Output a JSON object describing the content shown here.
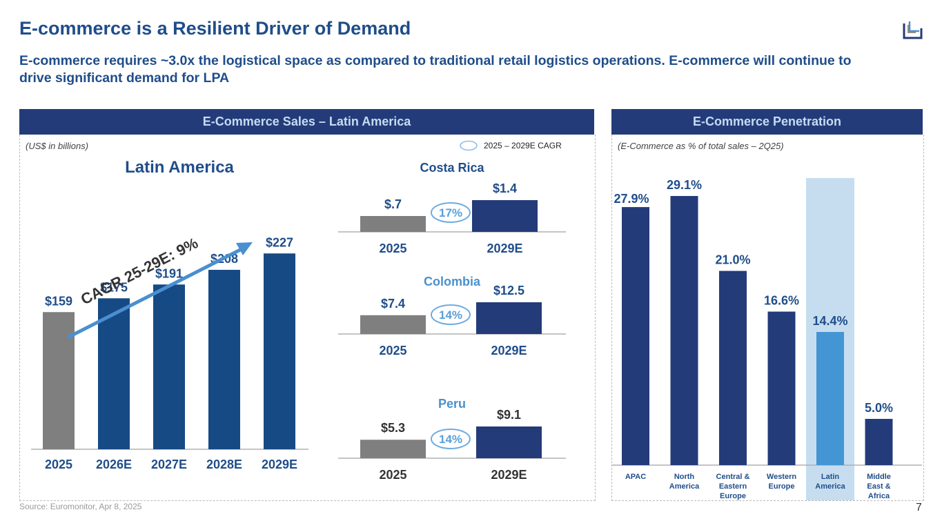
{
  "page": {
    "title": "E-commerce is a Resilient Driver of Demand",
    "subtitle": "E-commerce requires ~3.0x the logistical space as compared to traditional retail logistics operations. E-commerce will continue to drive significant demand for LPA",
    "logo_icon": "corner-bracket-logo-icon",
    "source": "Source: Euromonitor, Apr 8, 2025",
    "page_number": "7"
  },
  "left_panel": {
    "header": "E-Commerce Sales – Latin America",
    "units_note": "(US$ in billions)",
    "legend_label": "2025 – 2029E CAGR"
  },
  "right_panel": {
    "header": "E-Commerce Penetration",
    "units_note": "(E-Commerce as % of total sales – 2Q25)"
  },
  "colors": {
    "navy": "#243b7a",
    "bar_blue": "#164a84",
    "gray": "#7f7f7f",
    "highlight_bar": "#4396d3",
    "highlight_bg": "#c6ddf0",
    "arrow": "#4a8fd0",
    "title": "#1f4d8a"
  },
  "chart_data": [
    {
      "type": "bar",
      "title": "Latin America",
      "ylabel": "US$ in billions",
      "categories": [
        "2025",
        "2026E",
        "2027E",
        "2028E",
        "2029E"
      ],
      "values": [
        159,
        175,
        191,
        208,
        227
      ],
      "data_labels": [
        "$159",
        "$175",
        "$191",
        "$208",
        "$227"
      ],
      "annotation": "CAGR 25-29E: 9%",
      "ylim": [
        0,
        240
      ]
    },
    {
      "type": "bar",
      "title": "Costa Rica",
      "categories": [
        "2025",
        "2029E"
      ],
      "values": [
        0.7,
        1.4
      ],
      "data_labels": [
        "$.7",
        "$1.4"
      ],
      "cagr": "17%"
    },
    {
      "type": "bar",
      "title": "Colombia",
      "categories": [
        "2025",
        "2029E"
      ],
      "values": [
        7.4,
        12.5
      ],
      "data_labels": [
        "$7.4",
        "$12.5"
      ],
      "cagr": "14%"
    },
    {
      "type": "bar",
      "title": "Peru",
      "categories": [
        "2025",
        "2029E"
      ],
      "values": [
        5.3,
        9.1
      ],
      "data_labels": [
        "$5.3",
        "$9.1"
      ],
      "cagr": "14%"
    },
    {
      "type": "bar",
      "title": "E-Commerce Penetration",
      "ylabel": "E-Commerce as % of total sales – 2Q25",
      "categories": [
        "APAC",
        "North America",
        "Central & Eastern Europe",
        "Western Europe",
        "Latin America",
        "Middle East & Africa"
      ],
      "category_lines": [
        [
          "APAC"
        ],
        [
          "North",
          "America"
        ],
        [
          "Central &",
          "Eastern",
          "Europe"
        ],
        [
          "Western",
          "Europe"
        ],
        [
          "Latin",
          "America"
        ],
        [
          "Middle",
          "East &",
          "Africa"
        ]
      ],
      "values": [
        27.9,
        29.1,
        21.0,
        16.6,
        14.4,
        5.0
      ],
      "data_labels": [
        "27.9%",
        "29.1%",
        "21.0%",
        "16.6%",
        "14.4%",
        "5.0%"
      ],
      "highlight": "Latin America",
      "ylim": [
        0,
        30
      ]
    }
  ]
}
